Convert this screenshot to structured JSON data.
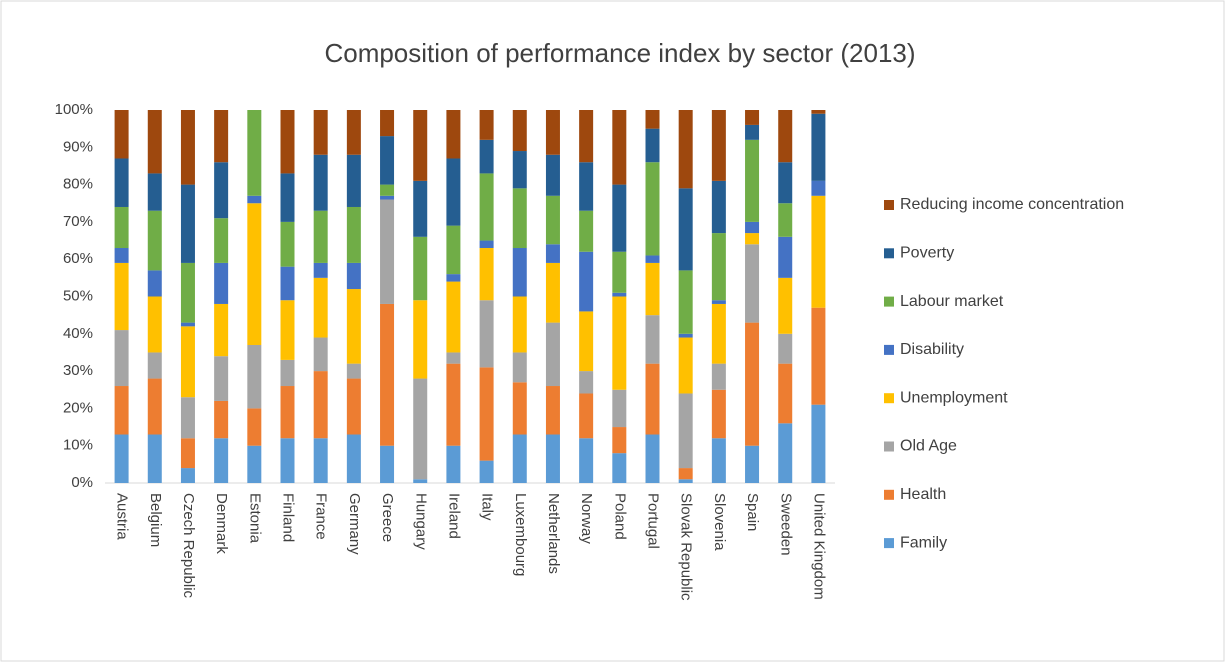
{
  "chart_data": {
    "type": "stacked_bar",
    "title": "Composition of performance index by sector (2013)",
    "categories": [
      "Austria",
      "Belgium",
      "Czech Republic",
      "Denmark",
      "Estonia",
      "Finland",
      "France",
      "Germany",
      "Greece",
      "Hungary",
      "Ireland",
      "Italy",
      "Luxembourg",
      "Netherlands",
      "Norway",
      "Poland",
      "Portugal",
      "Slovak Republic",
      "Slovenia",
      "Spain",
      "Sweeden",
      "United Kingdom"
    ],
    "series": [
      {
        "name": "Family",
        "color": "#5b9bd5",
        "values": [
          13,
          13,
          4,
          12,
          10,
          12,
          12,
          13,
          10,
          1,
          10,
          6,
          13,
          13,
          12,
          8,
          13,
          1,
          12,
          10,
          16,
          21
        ]
      },
      {
        "name": "Health",
        "color": "#ed7d31",
        "values": [
          13,
          15,
          8,
          10,
          10,
          14,
          18,
          15,
          38,
          0,
          22,
          25,
          14,
          13,
          12,
          7,
          19,
          3,
          13,
          33,
          16,
          26
        ]
      },
      {
        "name": "Old Age",
        "color": "#a5a5a5",
        "values": [
          15,
          7,
          11,
          12,
          17,
          7,
          9,
          4,
          28,
          27,
          3,
          18,
          8,
          17,
          6,
          10,
          13,
          20,
          7,
          21,
          8,
          0
        ]
      },
      {
        "name": "Unemployment",
        "color": "#ffc000",
        "values": [
          18,
          15,
          19,
          14,
          38,
          16,
          16,
          20,
          0,
          21,
          19,
          14,
          15,
          16,
          16,
          25,
          14,
          15,
          16,
          3,
          15,
          30
        ]
      },
      {
        "name": "Disability",
        "color": "#4472c4",
        "values": [
          4,
          7,
          1,
          11,
          2,
          9,
          4,
          7,
          1,
          0,
          2,
          2,
          13,
          5,
          16,
          1,
          2,
          1,
          1,
          3,
          11,
          4
        ]
      },
      {
        "name": "Labour market",
        "color": "#70ad47",
        "values": [
          11,
          16,
          16,
          12,
          23,
          12,
          14,
          15,
          3,
          17,
          13,
          18,
          16,
          13,
          11,
          11,
          25,
          17,
          18,
          22,
          9,
          0
        ]
      },
      {
        "name": "Poverty",
        "color": "#255e91",
        "values": [
          13,
          10,
          21,
          15,
          0,
          13,
          15,
          14,
          13,
          15,
          18,
          9,
          10,
          11,
          13,
          18,
          9,
          22,
          14,
          4,
          11,
          18
        ]
      },
      {
        "name": "Reducing income concentration",
        "color": "#9e480e",
        "values": [
          13,
          17,
          20,
          14,
          0,
          17,
          12,
          12,
          7,
          19,
          13,
          8,
          11,
          12,
          14,
          20,
          5,
          21,
          19,
          4,
          14,
          1
        ]
      }
    ],
    "ylim": [
      0,
      100
    ],
    "yticks": [
      {
        "value": 0,
        "label": "0%"
      },
      {
        "value": 10,
        "label": "10%"
      },
      {
        "value": 20,
        "label": "20%"
      },
      {
        "value": 30,
        "label": "30%"
      },
      {
        "value": 40,
        "label": "40%"
      },
      {
        "value": 50,
        "label": "50%"
      },
      {
        "value": 60,
        "label": "60%"
      },
      {
        "value": 70,
        "label": "70%"
      },
      {
        "value": 80,
        "label": "80%"
      },
      {
        "value": 90,
        "label": "90%"
      },
      {
        "value": 100,
        "label": "100%"
      }
    ],
    "grid": false,
    "legend": "right"
  }
}
